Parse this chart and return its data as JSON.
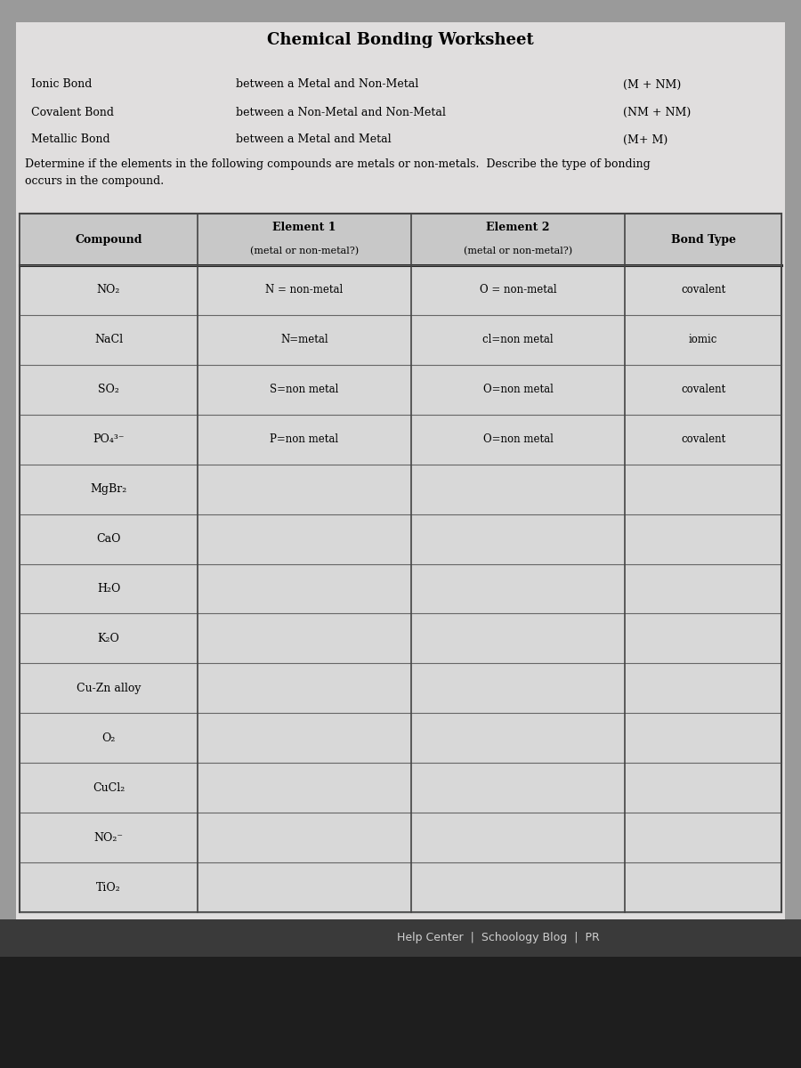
{
  "title": "Chemical Bonding Worksheet",
  "bond_types": [
    {
      "name": "Ionic Bond",
      "description": "between a Metal and Non-Metal",
      "formula": "(M + NM)"
    },
    {
      "name": "Covalent Bond",
      "description": "between a Non-Metal and Non-Metal",
      "formula": "(NM + NM)"
    },
    {
      "name": "Metallic Bond",
      "description": "between a Metal and Metal",
      "formula": "(M+ M)"
    }
  ],
  "instruction": "Determine if the elements in the following compounds are metals or non-metals.  Describe the type of bonding\noccurs in the compound.",
  "table_headers": [
    "Compound",
    "Element 1\n(metal or non-metal?)",
    "Element 2\n(metal or non-metal?)",
    "Bond Type"
  ],
  "rows": [
    {
      "compound": "NO₂",
      "el1": "N = non-metal",
      "el2": "O = non-metal",
      "bond": "covalent"
    },
    {
      "compound": "NaCl",
      "el1": "N=metal",
      "el2": "cl=non metal",
      "bond": "iomic"
    },
    {
      "compound": "SO₂",
      "el1": "S=non metal",
      "el2": "O=non metal",
      "bond": "covalent"
    },
    {
      "compound": "PO₄³⁻",
      "el1": "P=non metal",
      "el2": "O=non metal",
      "bond": "covalent"
    },
    {
      "compound": "MgBr₂",
      "el1": "",
      "el2": "",
      "bond": ""
    },
    {
      "compound": "CaO",
      "el1": "",
      "el2": "",
      "bond": ""
    },
    {
      "compound": "H₂O",
      "el1": "",
      "el2": "",
      "bond": ""
    },
    {
      "compound": "K₂O",
      "el1": "",
      "el2": "",
      "bond": ""
    },
    {
      "compound": "Cu-Zn alloy",
      "el1": "",
      "el2": "",
      "bond": ""
    },
    {
      "compound": "O₂",
      "el1": "",
      "el2": "",
      "bond": ""
    },
    {
      "compound": "CuCl₂",
      "el1": "",
      "el2": "",
      "bond": ""
    },
    {
      "compound": "NO₂⁻",
      "el1": "",
      "el2": "",
      "bond": ""
    },
    {
      "compound": "TiO₂",
      "el1": "",
      "el2": "",
      "bond": ""
    }
  ],
  "footer": "Help Center  |  Schoology Blog  |  PR",
  "outer_bg": "#9a9a9a",
  "page_bg": "#e0dede",
  "table_fill": "#d8d8d8",
  "header_fill": "#c8c8c8",
  "footer_bg": "#3a3a3a",
  "footer_text_color": "#d0d0d0",
  "bottom_bg": "#1e1e1e"
}
